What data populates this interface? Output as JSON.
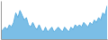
{
  "chart_data": {
    "type": "area",
    "values": [
      5,
      6,
      7,
      6,
      8,
      7,
      9,
      13,
      11,
      14,
      12,
      10,
      11,
      8,
      7,
      9,
      7,
      6,
      8,
      6,
      5,
      7,
      5,
      6,
      7,
      5,
      6,
      7,
      6,
      5,
      7,
      6,
      5,
      7,
      6,
      8,
      7,
      8,
      7,
      9,
      8,
      7,
      9,
      8,
      10,
      9,
      11,
      10,
      13,
      12,
      16
    ],
    "color": "#5aaee0",
    "xlim": [
      0,
      50
    ],
    "ylim": [
      2,
      18
    ],
    "tick_labels": false,
    "grid": false
  }
}
